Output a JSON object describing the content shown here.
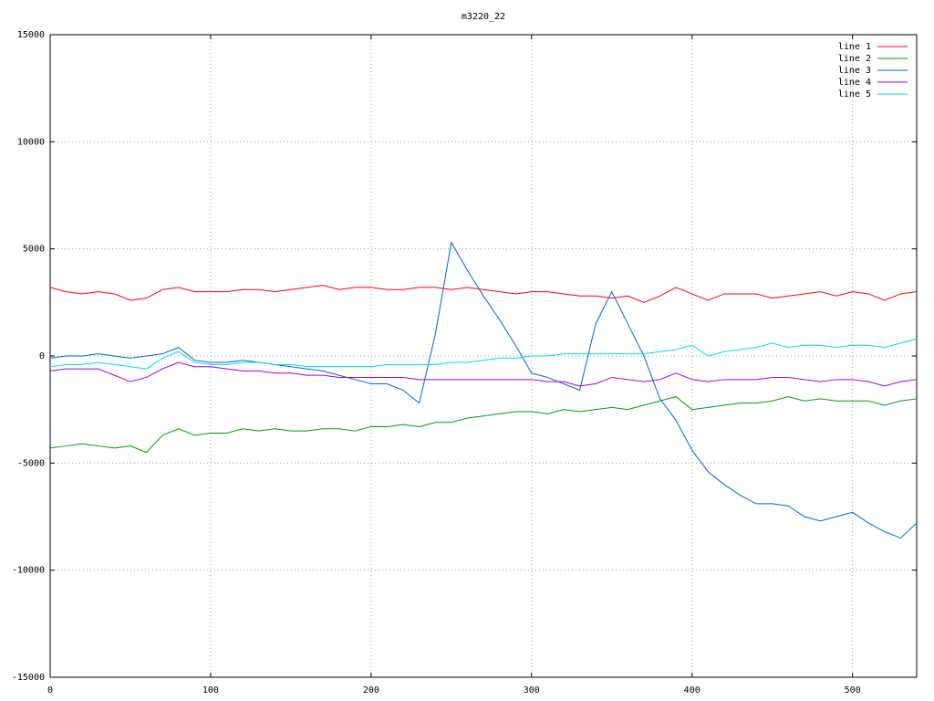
{
  "chart_data": {
    "type": "line",
    "title": "m3220_22",
    "x": [
      0,
      10,
      20,
      30,
      40,
      50,
      60,
      70,
      80,
      90,
      100,
      110,
      120,
      130,
      140,
      150,
      160,
      170,
      180,
      190,
      200,
      210,
      220,
      230,
      240,
      250,
      260,
      270,
      280,
      290,
      300,
      310,
      320,
      330,
      340,
      350,
      360,
      370,
      380,
      390,
      400,
      410,
      420,
      430,
      440,
      450,
      460,
      470,
      480,
      490,
      500,
      510,
      520,
      530,
      540
    ],
    "series": [
      {
        "name": "line 1",
        "color": "#ff0000",
        "values": [
          3200,
          3000,
          2900,
          3000,
          2900,
          2600,
          2700,
          3100,
          3200,
          3000,
          3000,
          3000,
          3100,
          3100,
          3000,
          3100,
          3200,
          3300,
          3100,
          3200,
          3200,
          3100,
          3100,
          3200,
          3200,
          3100,
          3200,
          3100,
          3000,
          2900,
          3000,
          3000,
          2900,
          2800,
          2800,
          2700,
          2800,
          2500,
          2800,
          3200,
          2900,
          2600,
          2900,
          2900,
          2900,
          2700,
          2800,
          2900,
          3000,
          2800,
          3000,
          2900,
          2600,
          2900,
          3000
        ]
      },
      {
        "name": "line 2",
        "color": "#00a000",
        "values": [
          -4300,
          -4200,
          -4100,
          -4200,
          -4300,
          -4200,
          -4500,
          -3700,
          -3400,
          -3700,
          -3600,
          -3600,
          -3400,
          -3500,
          -3400,
          -3500,
          -3500,
          -3400,
          -3400,
          -3500,
          -3300,
          -3300,
          -3200,
          -3300,
          -3100,
          -3100,
          -2900,
          -2800,
          -2700,
          -2600,
          -2600,
          -2700,
          -2500,
          -2600,
          -2500,
          -2400,
          -2500,
          -2300,
          -2100,
          -1900,
          -2500,
          -2400,
          -2300,
          -2200,
          -2200,
          -2100,
          -1900,
          -2100,
          -2000,
          -2100,
          -2100,
          -2100,
          -2300,
          -2100,
          -2000
        ]
      },
      {
        "name": "line 3",
        "color": "#0066dd",
        "values": [
          -100,
          0,
          0,
          100,
          0,
          -100,
          0,
          100,
          400,
          -200,
          -300,
          -300,
          -200,
          -300,
          -400,
          -500,
          -600,
          -700,
          -900,
          -1100,
          -1300,
          -1300,
          -1600,
          -2200,
          1000,
          5300,
          4000,
          2800,
          1700,
          500,
          -800,
          -1000,
          -1300,
          -1600,
          1500,
          3000,
          1500,
          0,
          -2000,
          -3000,
          -4400,
          -5400,
          -6000,
          -6500,
          -6900,
          -6900,
          -7000,
          -7500,
          -7700,
          -7500,
          -7300,
          -7800,
          -8200,
          -8500,
          -7800
        ]
      },
      {
        "name": "line 4",
        "color": "#a000e0",
        "values": [
          -700,
          -600,
          -600,
          -600,
          -900,
          -1200,
          -1000,
          -600,
          -300,
          -500,
          -500,
          -600,
          -700,
          -700,
          -800,
          -800,
          -900,
          -900,
          -1000,
          -1000,
          -1000,
          -1000,
          -1000,
          -1100,
          -1100,
          -1100,
          -1100,
          -1100,
          -1100,
          -1100,
          -1100,
          -1200,
          -1200,
          -1400,
          -1300,
          -1000,
          -1100,
          -1200,
          -1100,
          -800,
          -1100,
          -1200,
          -1100,
          -1100,
          -1100,
          -1000,
          -1000,
          -1100,
          -1200,
          -1100,
          -1100,
          -1200,
          -1400,
          -1200,
          -1100
        ]
      },
      {
        "name": "line 5",
        "color": "#00dddd",
        "values": [
          -500,
          -400,
          -400,
          -300,
          -400,
          -500,
          -600,
          -100,
          200,
          -300,
          -400,
          -400,
          -300,
          -300,
          -400,
          -400,
          -500,
          -500,
          -500,
          -500,
          -500,
          -400,
          -400,
          -400,
          -400,
          -300,
          -300,
          -200,
          -100,
          -100,
          0,
          0,
          100,
          100,
          100,
          100,
          100,
          100,
          200,
          300,
          500,
          0,
          200,
          300,
          400,
          600,
          400,
          500,
          500,
          400,
          500,
          500,
          400,
          600,
          800
        ]
      }
    ],
    "xlim": [
      0,
      540
    ],
    "xticks": [
      0,
      100,
      200,
      300,
      400,
      500
    ],
    "ylim": [
      -15000,
      15000
    ],
    "yticks": [
      -15000,
      -10000,
      -5000,
      0,
      5000,
      10000,
      15000
    ],
    "grid": true,
    "legend": "top-right"
  }
}
